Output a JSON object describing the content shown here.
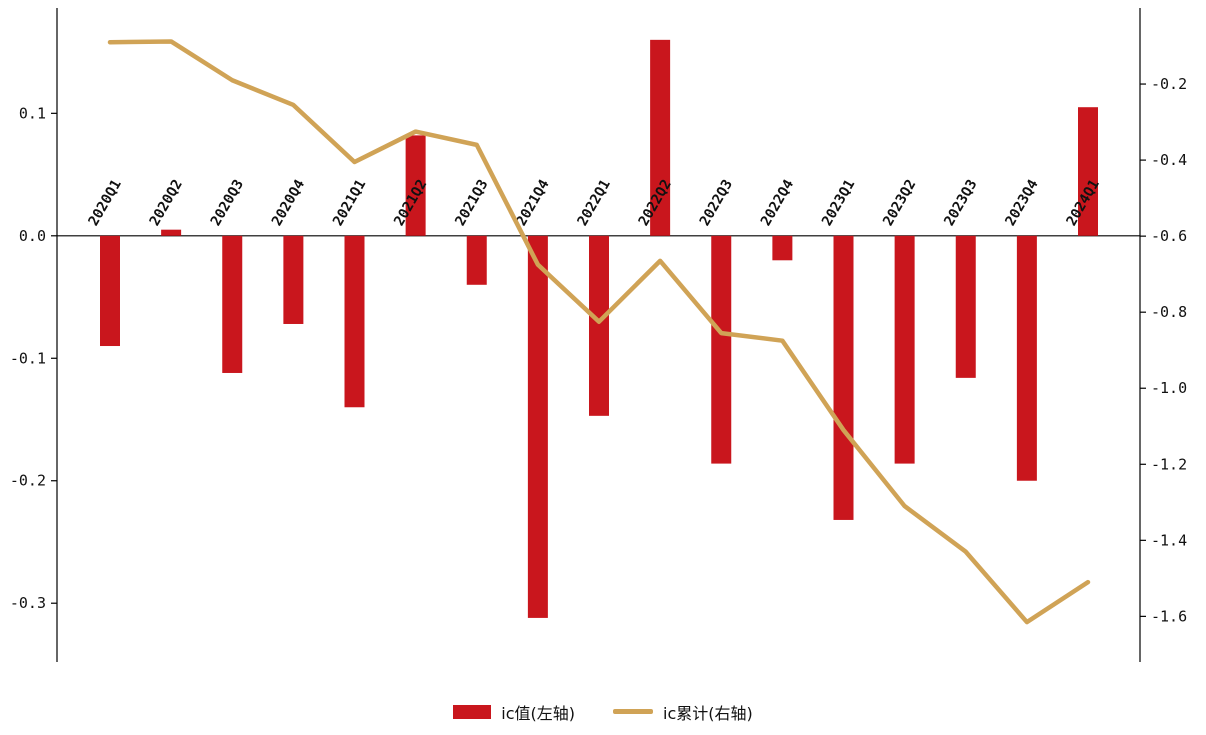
{
  "chart_data": {
    "type": "bar",
    "title": "",
    "xlabel": "",
    "ylabel_left": "",
    "ylabel_right": "",
    "grid": false,
    "legend_position": "bottom-center",
    "categories": [
      "2020Q1",
      "2020Q2",
      "2020Q3",
      "2020Q4",
      "2021Q1",
      "2021Q2",
      "2021Q3",
      "2021Q4",
      "2022Q1",
      "2022Q2",
      "2022Q3",
      "2022Q4",
      "2023Q1",
      "2023Q2",
      "2023Q3",
      "2023Q4",
      "2024Q1"
    ],
    "series": [
      {
        "name": "ic值(左轴)",
        "type": "bar",
        "axis": "left",
        "color": "#C9161D",
        "values": [
          -0.09,
          0.005,
          -0.112,
          -0.072,
          -0.14,
          0.082,
          -0.04,
          -0.312,
          -0.147,
          0.16,
          -0.186,
          -0.02,
          -0.232,
          -0.186,
          -0.116,
          -0.2,
          0.105
        ]
      },
      {
        "name": "ic累计(右轴)",
        "type": "line",
        "axis": "right",
        "color": "#D0A356",
        "values": [
          -0.09,
          -0.088,
          -0.19,
          -0.255,
          -0.405,
          -0.325,
          -0.36,
          -0.675,
          -0.825,
          -0.665,
          -0.855,
          -0.875,
          -1.11,
          -1.31,
          -1.43,
          -1.615,
          -1.51
        ]
      }
    ],
    "left_axis": {
      "ticks": [
        "0.1",
        "0.0",
        "-0.1",
        "-0.2",
        "-0.3"
      ],
      "tick_values": [
        0.1,
        0.0,
        -0.1,
        -0.2,
        -0.3
      ],
      "range": [
        -0.348,
        0.186
      ]
    },
    "right_axis": {
      "ticks": [
        "-0.2",
        "-0.4",
        "-0.6",
        "-0.8",
        "-1.0",
        "-1.2",
        "-1.4",
        "-1.6"
      ],
      "tick_values": [
        -0.2,
        -0.4,
        -0.6,
        -0.8,
        -1.0,
        -1.2,
        -1.4,
        -1.6
      ],
      "range": [
        -1.72,
        0.0
      ]
    },
    "legend": [
      {
        "label": "ic值(左轴)",
        "marker": "bar"
      },
      {
        "label": "ic累计(右轴)",
        "marker": "line"
      }
    ]
  }
}
